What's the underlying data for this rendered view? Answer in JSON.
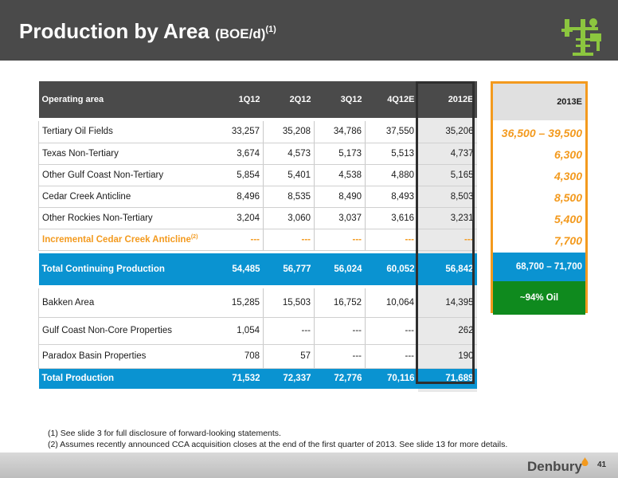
{
  "header": {
    "title": "Production by Area",
    "unit": "(BOE/d)",
    "footnote_ref": "(1)"
  },
  "table": {
    "columns": [
      "Operating area",
      "1Q12",
      "2Q12",
      "3Q12",
      "4Q12E",
      "2012E"
    ],
    "rows": [
      {
        "label": "Tertiary Oil Fields",
        "values": [
          "33,257",
          "35,208",
          "34,786",
          "37,550",
          "35,206"
        ]
      },
      {
        "label": "Texas Non-Tertiary",
        "values": [
          "3,674",
          "4,573",
          "5,173",
          "5,513",
          "4,737"
        ]
      },
      {
        "label": "Other Gulf Coast Non-Tertiary",
        "values": [
          "5,854",
          "5,401",
          "4,538",
          "4,880",
          "5,165"
        ]
      },
      {
        "label": "Cedar Creek Anticline",
        "values": [
          "8,496",
          "8,535",
          "8,490",
          "8,493",
          "8,503"
        ]
      },
      {
        "label": "Other Rockies Non-Tertiary",
        "values": [
          "3,204",
          "3,060",
          "3,037",
          "3,616",
          "3,231"
        ]
      },
      {
        "label": "Incremental Cedar Creek Anticline",
        "sup": "(2)",
        "values": [
          "---",
          "---",
          "---",
          "---",
          "---"
        ]
      },
      {
        "label": "Total Continuing Production",
        "values": [
          "54,485",
          "56,777",
          "56,024",
          "60,052",
          "56,842"
        ]
      },
      {
        "label": "Bakken Area",
        "values": [
          "15,285",
          "15,503",
          "16,752",
          "10,064",
          "14,395"
        ]
      },
      {
        "label": "Gulf Coast Non-Core Properties",
        "values": [
          "1,054",
          "---",
          "---",
          "---",
          "262"
        ]
      },
      {
        "label": "Paradox Basin Properties",
        "values": [
          "708",
          "57",
          "---",
          "---",
          "190"
        ]
      },
      {
        "label": "Total Production",
        "values": [
          "71,532",
          "72,337",
          "72,776",
          "70,116",
          "71,689"
        ]
      }
    ]
  },
  "guidance_2013": {
    "header": "2013E",
    "values": [
      "36,500 – 39,500",
      "6,300",
      "4,300",
      "8,500",
      "5,400",
      "7,700"
    ],
    "total": "68,700 – 71,700",
    "oil_note": "~94% Oil"
  },
  "footnotes": [
    "(1) See slide 3 for full disclosure of forward-looking statements.",
    "(2) Assumes recently announced CCA acquisition closes at the end of the first quarter of 2013.  See slide 13 for more details."
  ],
  "footer": {
    "brand": "Denbury",
    "page_number": "41"
  },
  "colors": {
    "header_bg": "#4a4a4a",
    "total_blue": "#0a93d1",
    "orange": "#f39a1e",
    "oil_green": "#0f8a1e",
    "logo_green": "#8cc63f"
  }
}
